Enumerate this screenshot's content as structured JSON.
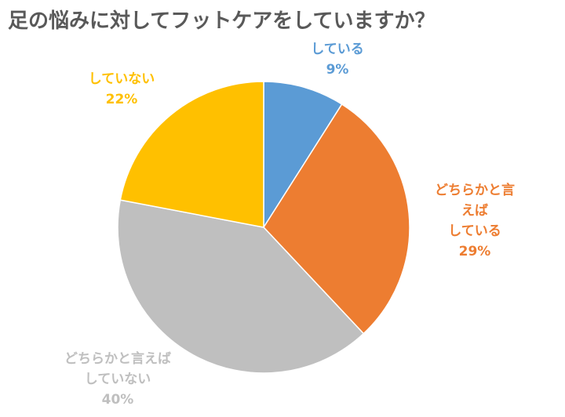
{
  "chart_data": {
    "type": "pie",
    "title": "足の悩みに対してフットケアをしていますか？",
    "categories": [
      "している",
      "どちらかと言えば\nしている",
      "どちらかと言えば\nしていない",
      "していない"
    ],
    "values": [
      9,
      29,
      40,
      22
    ],
    "value_labels": [
      "9%",
      "29%",
      "40%",
      "22%"
    ],
    "colors": [
      "#5b9bd5",
      "#ed7d31",
      "#bfbfbf",
      "#ffc000"
    ]
  }
}
